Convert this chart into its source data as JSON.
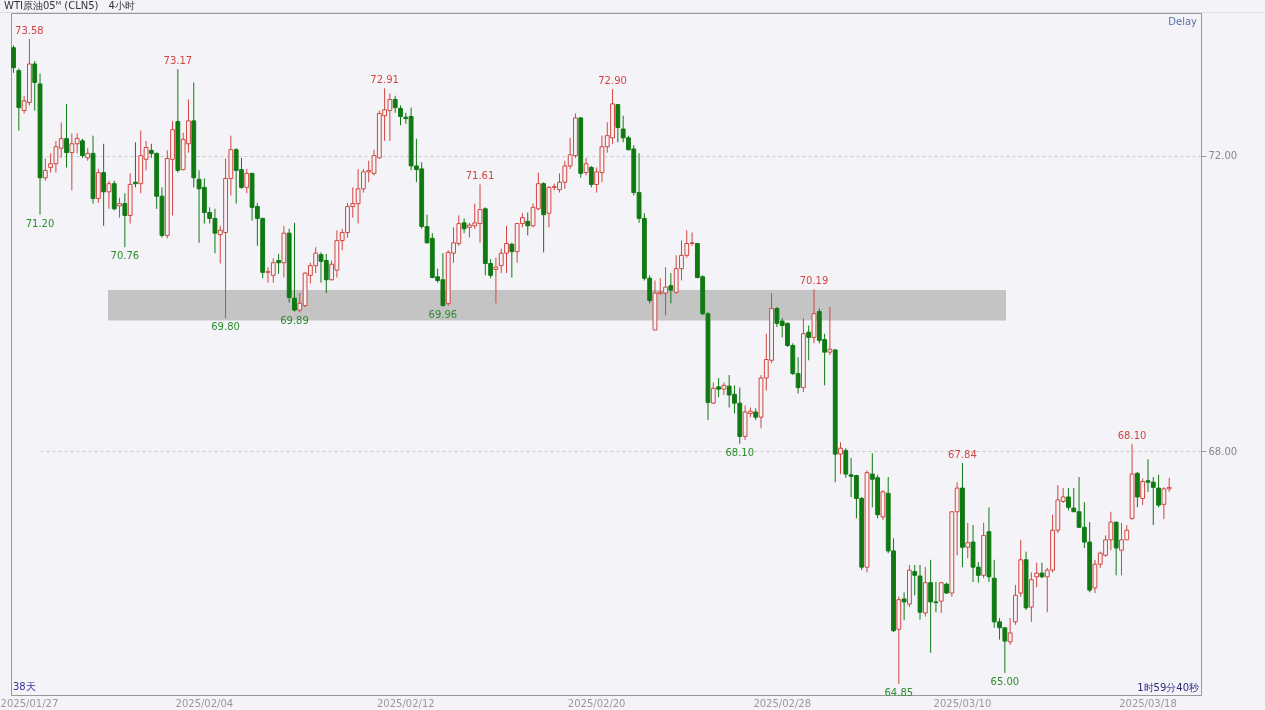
{
  "chart_data": {
    "type": "candlestick",
    "title": "WTI原油05ᴹ (CLN5)",
    "subtitle": "4小时",
    "categories": [
      null,
      null,
      null,
      "2025/01/27",
      null,
      null,
      null,
      null,
      null,
      null,
      null,
      null,
      null,
      null,
      null,
      null,
      null,
      null,
      null,
      null,
      null,
      null,
      null,
      null,
      null,
      null,
      null,
      null,
      null,
      null,
      null,
      null,
      null,
      null,
      null,
      null,
      "2025/02/04",
      null,
      null,
      null,
      null,
      null,
      null,
      null,
      null,
      null,
      null,
      null,
      null,
      null,
      null,
      null,
      null,
      null,
      null,
      null,
      null,
      null,
      null,
      null,
      null,
      null,
      null,
      null,
      null,
      null,
      null,
      null,
      null,
      null,
      null,
      null,
      null,
      null,
      "2025/02/12",
      null,
      null,
      null,
      null,
      null,
      null,
      null,
      null,
      null,
      null,
      null,
      null,
      null,
      null,
      null,
      null,
      null,
      null,
      null,
      null,
      null,
      null,
      null,
      null,
      null,
      null,
      null,
      null,
      null,
      null,
      null,
      null,
      null,
      null,
      null,
      "2025/02/20",
      null,
      null,
      null,
      null,
      null,
      null,
      null,
      null,
      null,
      null,
      null,
      null,
      null,
      null,
      null,
      null,
      null,
      null,
      null,
      null,
      null,
      null,
      null,
      null,
      null,
      null,
      null,
      null,
      null,
      null,
      null,
      null,
      null,
      null,
      "2025/02/28",
      null,
      null,
      null,
      null,
      null,
      null,
      null,
      null,
      null,
      null,
      null,
      null,
      null,
      null,
      null,
      null,
      null,
      null,
      null,
      null,
      null,
      null,
      null,
      null,
      null,
      null,
      null,
      null,
      null,
      null,
      null,
      null,
      null,
      "2025/03/10",
      null,
      null,
      null,
      null,
      null,
      null,
      null,
      null,
      null,
      null,
      null,
      null,
      null,
      null,
      null,
      null,
      null,
      null,
      null,
      null,
      null,
      null,
      null,
      null,
      null,
      null,
      null,
      null,
      null,
      null,
      null,
      null,
      null,
      null,
      "2025/03/18",
      null,
      null,
      null,
      null
    ],
    "ohlc": [
      [
        73.46,
        73.49,
        73.12,
        73.19
      ],
      [
        73.15,
        73.18,
        72.34,
        72.65
      ],
      [
        72.61,
        72.81,
        72.57,
        72.74
      ],
      [
        72.72,
        73.58,
        72.68,
        73.24
      ],
      [
        73.24,
        73.28,
        72.61,
        72.99
      ],
      [
        72.97,
        73.11,
        71.2,
        71.7
      ],
      [
        71.7,
        71.96,
        71.66,
        71.8
      ],
      [
        71.84,
        72.03,
        71.77,
        71.89
      ],
      [
        71.89,
        72.2,
        71.77,
        72.12
      ],
      [
        72.1,
        72.45,
        71.97,
        72.23
      ],
      [
        72.23,
        72.7,
        71.84,
        72.04
      ],
      [
        72.04,
        72.3,
        71.53,
        72.16
      ],
      [
        72.16,
        72.3,
        72.03,
        72.23
      ],
      [
        72.2,
        72.23,
        71.97,
        72.0
      ],
      [
        71.97,
        72.1,
        71.93,
        72.03
      ],
      [
        72.03,
        72.27,
        71.35,
        71.42
      ],
      [
        71.42,
        71.82,
        71.36,
        71.77
      ],
      [
        71.77,
        72.16,
        71.05,
        71.51
      ],
      [
        71.51,
        71.66,
        71.28,
        71.62
      ],
      [
        71.62,
        71.66,
        71.26,
        71.28
      ],
      [
        71.32,
        71.43,
        71.16,
        71.35
      ],
      [
        71.35,
        71.49,
        70.76,
        71.19
      ],
      [
        71.19,
        71.76,
        71.08,
        71.61
      ],
      [
        71.64,
        72.18,
        71.57,
        71.62
      ],
      [
        71.62,
        72.34,
        71.49,
        72.0
      ],
      [
        71.95,
        72.2,
        71.8,
        72.11
      ],
      [
        72.07,
        72.16,
        71.97,
        72.03
      ],
      [
        72.03,
        72.04,
        71.28,
        71.45
      ],
      [
        71.45,
        71.57,
        70.89,
        70.92
      ],
      [
        70.92,
        72.07,
        70.88,
        71.96
      ],
      [
        71.95,
        72.47,
        71.19,
        72.35
      ],
      [
        72.46,
        73.17,
        71.77,
        71.8
      ],
      [
        71.81,
        72.31,
        71.8,
        72.22
      ],
      [
        72.16,
        72.76,
        72.04,
        72.47
      ],
      [
        72.47,
        72.99,
        71.57,
        71.7
      ],
      [
        71.68,
        71.8,
        70.82,
        71.55
      ],
      [
        71.57,
        71.69,
        71.08,
        71.23
      ],
      [
        71.23,
        71.3,
        71.08,
        71.15
      ],
      [
        71.15,
        71.28,
        70.68,
        70.95
      ],
      [
        70.93,
        71.05,
        70.54,
        70.99
      ],
      [
        70.96,
        71.96,
        69.8,
        71.69
      ],
      [
        71.69,
        72.27,
        71.46,
        72.08
      ],
      [
        72.08,
        72.1,
        71.35,
        71.8
      ],
      [
        71.81,
        71.97,
        71.55,
        71.57
      ],
      [
        71.57,
        71.82,
        71.49,
        71.76
      ],
      [
        71.76,
        71.76,
        71.12,
        71.3
      ],
      [
        71.31,
        71.36,
        70.78,
        71.15
      ],
      [
        71.15,
        71.16,
        70.34,
        70.42
      ],
      [
        70.42,
        70.49,
        70.28,
        70.43
      ],
      [
        70.38,
        70.61,
        70.28,
        70.55
      ],
      [
        70.58,
        70.67,
        70.4,
        70.55
      ],
      [
        70.55,
        71.05,
        70.35,
        70.95
      ],
      [
        70.95,
        71.01,
        70.01,
        70.08
      ],
      [
        70.07,
        71.09,
        69.89,
        69.91
      ],
      [
        69.91,
        70.14,
        69.88,
        70.0
      ],
      [
        69.97,
        70.42,
        69.95,
        70.41
      ],
      [
        70.38,
        70.55,
        70.27,
        70.51
      ],
      [
        70.51,
        70.76,
        70.41,
        70.68
      ],
      [
        70.66,
        70.69,
        70.28,
        70.57
      ],
      [
        70.58,
        70.67,
        70.14,
        70.32
      ],
      [
        70.32,
        70.58,
        70.31,
        70.53
      ],
      [
        70.45,
        70.99,
        70.35,
        70.85
      ],
      [
        70.85,
        71.01,
        70.72,
        70.96
      ],
      [
        70.96,
        71.36,
        70.89,
        71.31
      ],
      [
        71.31,
        71.57,
        71.16,
        71.35
      ],
      [
        71.35,
        71.82,
        71.08,
        71.55
      ],
      [
        71.55,
        71.82,
        71.5,
        71.78
      ],
      [
        71.78,
        71.93,
        71.64,
        71.8
      ],
      [
        71.76,
        72.08,
        71.73,
        72.0
      ],
      [
        71.97,
        72.61,
        71.96,
        72.57
      ],
      [
        72.54,
        72.91,
        72.2,
        72.62
      ],
      [
        72.61,
        72.84,
        72.2,
        72.76
      ],
      [
        72.76,
        72.81,
        72.58,
        72.65
      ],
      [
        72.64,
        72.68,
        72.41,
        72.53
      ],
      [
        72.52,
        72.58,
        72.43,
        72.5
      ],
      [
        72.53,
        72.65,
        71.8,
        71.86
      ],
      [
        71.86,
        72.23,
        71.64,
        71.81
      ],
      [
        71.82,
        71.91,
        71.01,
        71.04
      ],
      [
        71.04,
        71.2,
        70.81,
        70.82
      ],
      [
        70.88,
        70.95,
        70.34,
        70.35
      ],
      [
        70.36,
        70.47,
        70.28,
        70.31
      ],
      [
        70.32,
        70.68,
        69.96,
        69.97
      ],
      [
        70.0,
        70.72,
        69.97,
        70.69
      ],
      [
        70.68,
        71.03,
        70.55,
        70.82
      ],
      [
        70.81,
        71.19,
        70.78,
        71.08
      ],
      [
        71.09,
        71.15,
        70.95,
        71.01
      ],
      [
        71.03,
        71.09,
        70.89,
        71.06
      ],
      [
        71.05,
        71.35,
        71.01,
        71.09
      ],
      [
        71.08,
        71.61,
        70.82,
        71.27
      ],
      [
        71.28,
        71.3,
        70.38,
        70.54
      ],
      [
        70.54,
        70.6,
        70.34,
        70.38
      ],
      [
        70.46,
        70.62,
        70.0,
        70.49
      ],
      [
        70.51,
        70.74,
        70.41,
        70.68
      ],
      [
        70.68,
        71.05,
        70.41,
        70.81
      ],
      [
        70.8,
        70.82,
        70.35,
        70.7
      ],
      [
        70.7,
        71.09,
        70.55,
        71.08
      ],
      [
        71.08,
        71.22,
        71.03,
        71.16
      ],
      [
        71.11,
        71.23,
        70.92,
        71.05
      ],
      [
        71.05,
        71.35,
        71.03,
        71.3
      ],
      [
        71.28,
        71.77,
        71.26,
        71.62
      ],
      [
        71.62,
        71.64,
        70.69,
        71.2
      ],
      [
        71.22,
        71.59,
        71.03,
        71.57
      ],
      [
        71.57,
        71.62,
        71.53,
        71.58
      ],
      [
        71.54,
        71.76,
        71.5,
        71.64
      ],
      [
        71.64,
        71.93,
        71.55,
        71.86
      ],
      [
        71.86,
        72.24,
        71.82,
        72.01
      ],
      [
        72.0,
        72.57,
        71.97,
        72.51
      ],
      [
        72.51,
        72.52,
        71.7,
        71.76
      ],
      [
        71.77,
        71.97,
        71.73,
        71.89
      ],
      [
        71.84,
        71.86,
        71.57,
        71.61
      ],
      [
        71.61,
        71.84,
        71.5,
        71.78
      ],
      [
        71.77,
        72.27,
        71.64,
        72.12
      ],
      [
        72.12,
        72.45,
        72.04,
        72.27
      ],
      [
        72.24,
        72.9,
        72.16,
        72.7
      ],
      [
        72.69,
        72.7,
        72.18,
        72.38
      ],
      [
        72.36,
        72.54,
        72.18,
        72.24
      ],
      [
        72.24,
        72.27,
        72.07,
        72.08
      ],
      [
        72.09,
        72.14,
        71.46,
        71.5
      ],
      [
        71.5,
        72.03,
        71.09,
        71.15
      ],
      [
        71.15,
        71.22,
        70.31,
        70.34
      ],
      [
        70.34,
        70.38,
        70.0,
        70.04
      ],
      [
        69.64,
        70.31,
        69.64,
        70.14
      ],
      [
        70.13,
        70.34,
        70.12,
        70.15
      ],
      [
        70.14,
        70.49,
        69.84,
        70.22
      ],
      [
        70.24,
        70.41,
        70.0,
        70.18
      ],
      [
        70.15,
        70.65,
        70.13,
        70.47
      ],
      [
        70.47,
        70.85,
        70.31,
        70.65
      ],
      [
        70.65,
        70.99,
        70.62,
        70.81
      ],
      [
        70.81,
        70.96,
        70.78,
        70.82
      ],
      [
        70.81,
        70.82,
        70.34,
        70.35
      ],
      [
        70.36,
        70.38,
        69.84,
        69.86
      ],
      [
        69.86,
        69.88,
        68.42,
        68.66
      ],
      [
        68.65,
        68.93,
        68.64,
        68.85
      ],
      [
        68.87,
        68.99,
        68.73,
        68.84
      ],
      [
        68.84,
        68.93,
        68.76,
        68.89
      ],
      [
        68.88,
        69.03,
        68.59,
        68.76
      ],
      [
        68.77,
        68.89,
        68.51,
        68.65
      ],
      [
        68.65,
        68.86,
        68.1,
        68.2
      ],
      [
        68.2,
        68.62,
        68.15,
        68.53
      ],
      [
        68.51,
        68.59,
        68.46,
        68.54
      ],
      [
        68.53,
        68.58,
        68.42,
        68.46
      ],
      [
        68.46,
        69.03,
        68.31,
        68.99
      ],
      [
        68.99,
        69.59,
        68.82,
        69.24
      ],
      [
        69.23,
        70.14,
        69.19,
        69.93
      ],
      [
        69.93,
        69.95,
        69.68,
        69.73
      ],
      [
        69.76,
        69.8,
        69.54,
        69.7
      ],
      [
        69.73,
        69.74,
        69.41,
        69.43
      ],
      [
        69.43,
        69.46,
        69.03,
        69.05
      ],
      [
        69.05,
        69.27,
        68.78,
        68.86
      ],
      [
        68.86,
        69.8,
        68.8,
        69.59
      ],
      [
        69.61,
        69.7,
        69.23,
        69.54
      ],
      [
        69.54,
        70.19,
        69.46,
        69.86
      ],
      [
        69.89,
        69.93,
        69.46,
        69.5
      ],
      [
        69.51,
        69.59,
        68.89,
        69.34
      ],
      [
        69.34,
        69.95,
        69.3,
        69.38
      ],
      [
        69.37,
        69.38,
        67.58,
        67.96
      ],
      [
        67.96,
        68.12,
        67.69,
        68.04
      ],
      [
        68.01,
        68.04,
        67.64,
        67.69
      ],
      [
        67.68,
        67.91,
        67.38,
        67.66
      ],
      [
        67.67,
        67.68,
        67.09,
        67.36
      ],
      [
        67.36,
        67.38,
        66.39,
        66.43
      ],
      [
        66.43,
        67.74,
        66.36,
        67.71
      ],
      [
        67.69,
        67.97,
        67.24,
        67.62
      ],
      [
        67.64,
        67.68,
        67.09,
        67.14
      ],
      [
        67.11,
        67.47,
        67.07,
        67.45
      ],
      [
        67.43,
        67.65,
        66.62,
        66.65
      ],
      [
        66.65,
        66.82,
        65.55,
        65.57
      ],
      [
        65.59,
        66.03,
        64.85,
        65.99
      ],
      [
        66.0,
        66.09,
        65.71,
        65.96
      ],
      [
        65.93,
        66.46,
        65.89,
        66.39
      ],
      [
        66.37,
        66.46,
        66.05,
        66.32
      ],
      [
        66.31,
        66.46,
        65.72,
        65.82
      ],
      [
        65.81,
        66.43,
        65.76,
        66.22
      ],
      [
        66.22,
        66.53,
        65.27,
        65.96
      ],
      [
        65.96,
        66.23,
        65.82,
        65.95
      ],
      [
        65.97,
        66.23,
        65.81,
        66.22
      ],
      [
        66.2,
        66.22,
        66.07,
        66.08
      ],
      [
        66.08,
        67.18,
        66.03,
        67.18
      ],
      [
        67.18,
        67.58,
        66.59,
        67.5
      ],
      [
        67.5,
        67.84,
        66.43,
        66.7
      ],
      [
        66.7,
        67.03,
        66.55,
        66.76
      ],
      [
        66.77,
        67.0,
        66.23,
        66.43
      ],
      [
        66.43,
        66.5,
        66.22,
        66.32
      ],
      [
        66.32,
        67.03,
        66.28,
        66.86
      ],
      [
        66.91,
        67.24,
        66.23,
        66.3
      ],
      [
        66.28,
        66.53,
        65.61,
        65.69
      ],
      [
        65.69,
        65.74,
        65.45,
        65.61
      ],
      [
        65.61,
        65.61,
        65.0,
        65.43
      ],
      [
        65.42,
        65.74,
        65.38,
        65.54
      ],
      [
        65.69,
        66.19,
        65.65,
        66.05
      ],
      [
        66.08,
        66.8,
        66.03,
        66.53
      ],
      [
        66.53,
        66.64,
        65.85,
        65.88
      ],
      [
        65.89,
        66.36,
        65.69,
        66.26
      ],
      [
        66.3,
        66.49,
        66.16,
        66.35
      ],
      [
        66.35,
        66.49,
        66.28,
        66.3
      ],
      [
        66.3,
        66.42,
        65.82,
        66.39
      ],
      [
        66.39,
        67.14,
        66.36,
        66.93
      ],
      [
        66.93,
        67.54,
        66.89,
        67.34
      ],
      [
        67.32,
        67.5,
        67.3,
        67.38
      ],
      [
        67.38,
        67.5,
        67.2,
        67.24
      ],
      [
        67.23,
        67.5,
        67.18,
        67.18
      ],
      [
        67.18,
        67.65,
        66.96,
        66.97
      ],
      [
        66.97,
        67.31,
        66.69,
        66.77
      ],
      [
        66.77,
        67.04,
        66.09,
        66.12
      ],
      [
        66.15,
        66.53,
        66.08,
        66.47
      ],
      [
        66.47,
        66.64,
        66.42,
        66.62
      ],
      [
        66.59,
        66.86,
        66.57,
        66.8
      ],
      [
        66.8,
        67.18,
        66.66,
        67.04
      ],
      [
        67.04,
        67.04,
        66.32,
        66.69
      ],
      [
        66.66,
        67.03,
        66.32,
        66.8
      ],
      [
        66.8,
        67.0,
        66.8,
        66.93
      ],
      [
        67.09,
        68.1,
        67.07,
        67.69
      ],
      [
        67.7,
        67.72,
        67.24,
        67.38
      ],
      [
        67.36,
        67.63,
        67.27,
        67.59
      ],
      [
        67.6,
        67.89,
        67.45,
        67.58
      ],
      [
        67.58,
        67.65,
        67.0,
        67.51
      ],
      [
        67.5,
        67.68,
        67.24,
        67.27
      ],
      [
        67.28,
        67.51,
        67.08,
        67.49
      ],
      [
        67.49,
        67.64,
        67.45,
        67.51
      ]
    ],
    "ylim": [
      64.7,
      73.93
    ],
    "yticks": [
      {
        "value": 72,
        "label": "72.00"
      },
      {
        "value": 68,
        "label": "68.00"
      }
    ],
    "grid": "y",
    "bands": [
      {
        "axis": "y",
        "from": 69.77,
        "to": 70.18,
        "color": "#c4c4c4"
      }
    ],
    "annotations": [
      "Delay",
      "38天",
      "1时59分40秒",
      {
        "text": "73.58",
        "y": 73.58
      },
      {
        "text": "71.20",
        "y": 71.2
      },
      {
        "text": "70.76",
        "y": 70.76
      },
      {
        "text": "73.17",
        "y": 73.17
      },
      {
        "text": "69.80",
        "y": 69.8
      },
      {
        "text": "69.89",
        "y": 69.89
      },
      {
        "text": "72.91",
        "y": 72.91
      },
      {
        "text": "69.96",
        "y": 69.96
      },
      {
        "text": "71.61",
        "y": 71.61
      },
      {
        "text": "72.90",
        "y": 72.9
      },
      {
        "text": "68.10",
        "y": 68.1
      },
      {
        "text": "70.19",
        "y": 70.19
      },
      {
        "text": "64.85",
        "y": 64.85
      },
      {
        "text": "67.84",
        "y": 67.84
      },
      {
        "text": "65.00",
        "y": 65.0
      },
      {
        "text": "68.10",
        "y": 68.1
      }
    ]
  }
}
